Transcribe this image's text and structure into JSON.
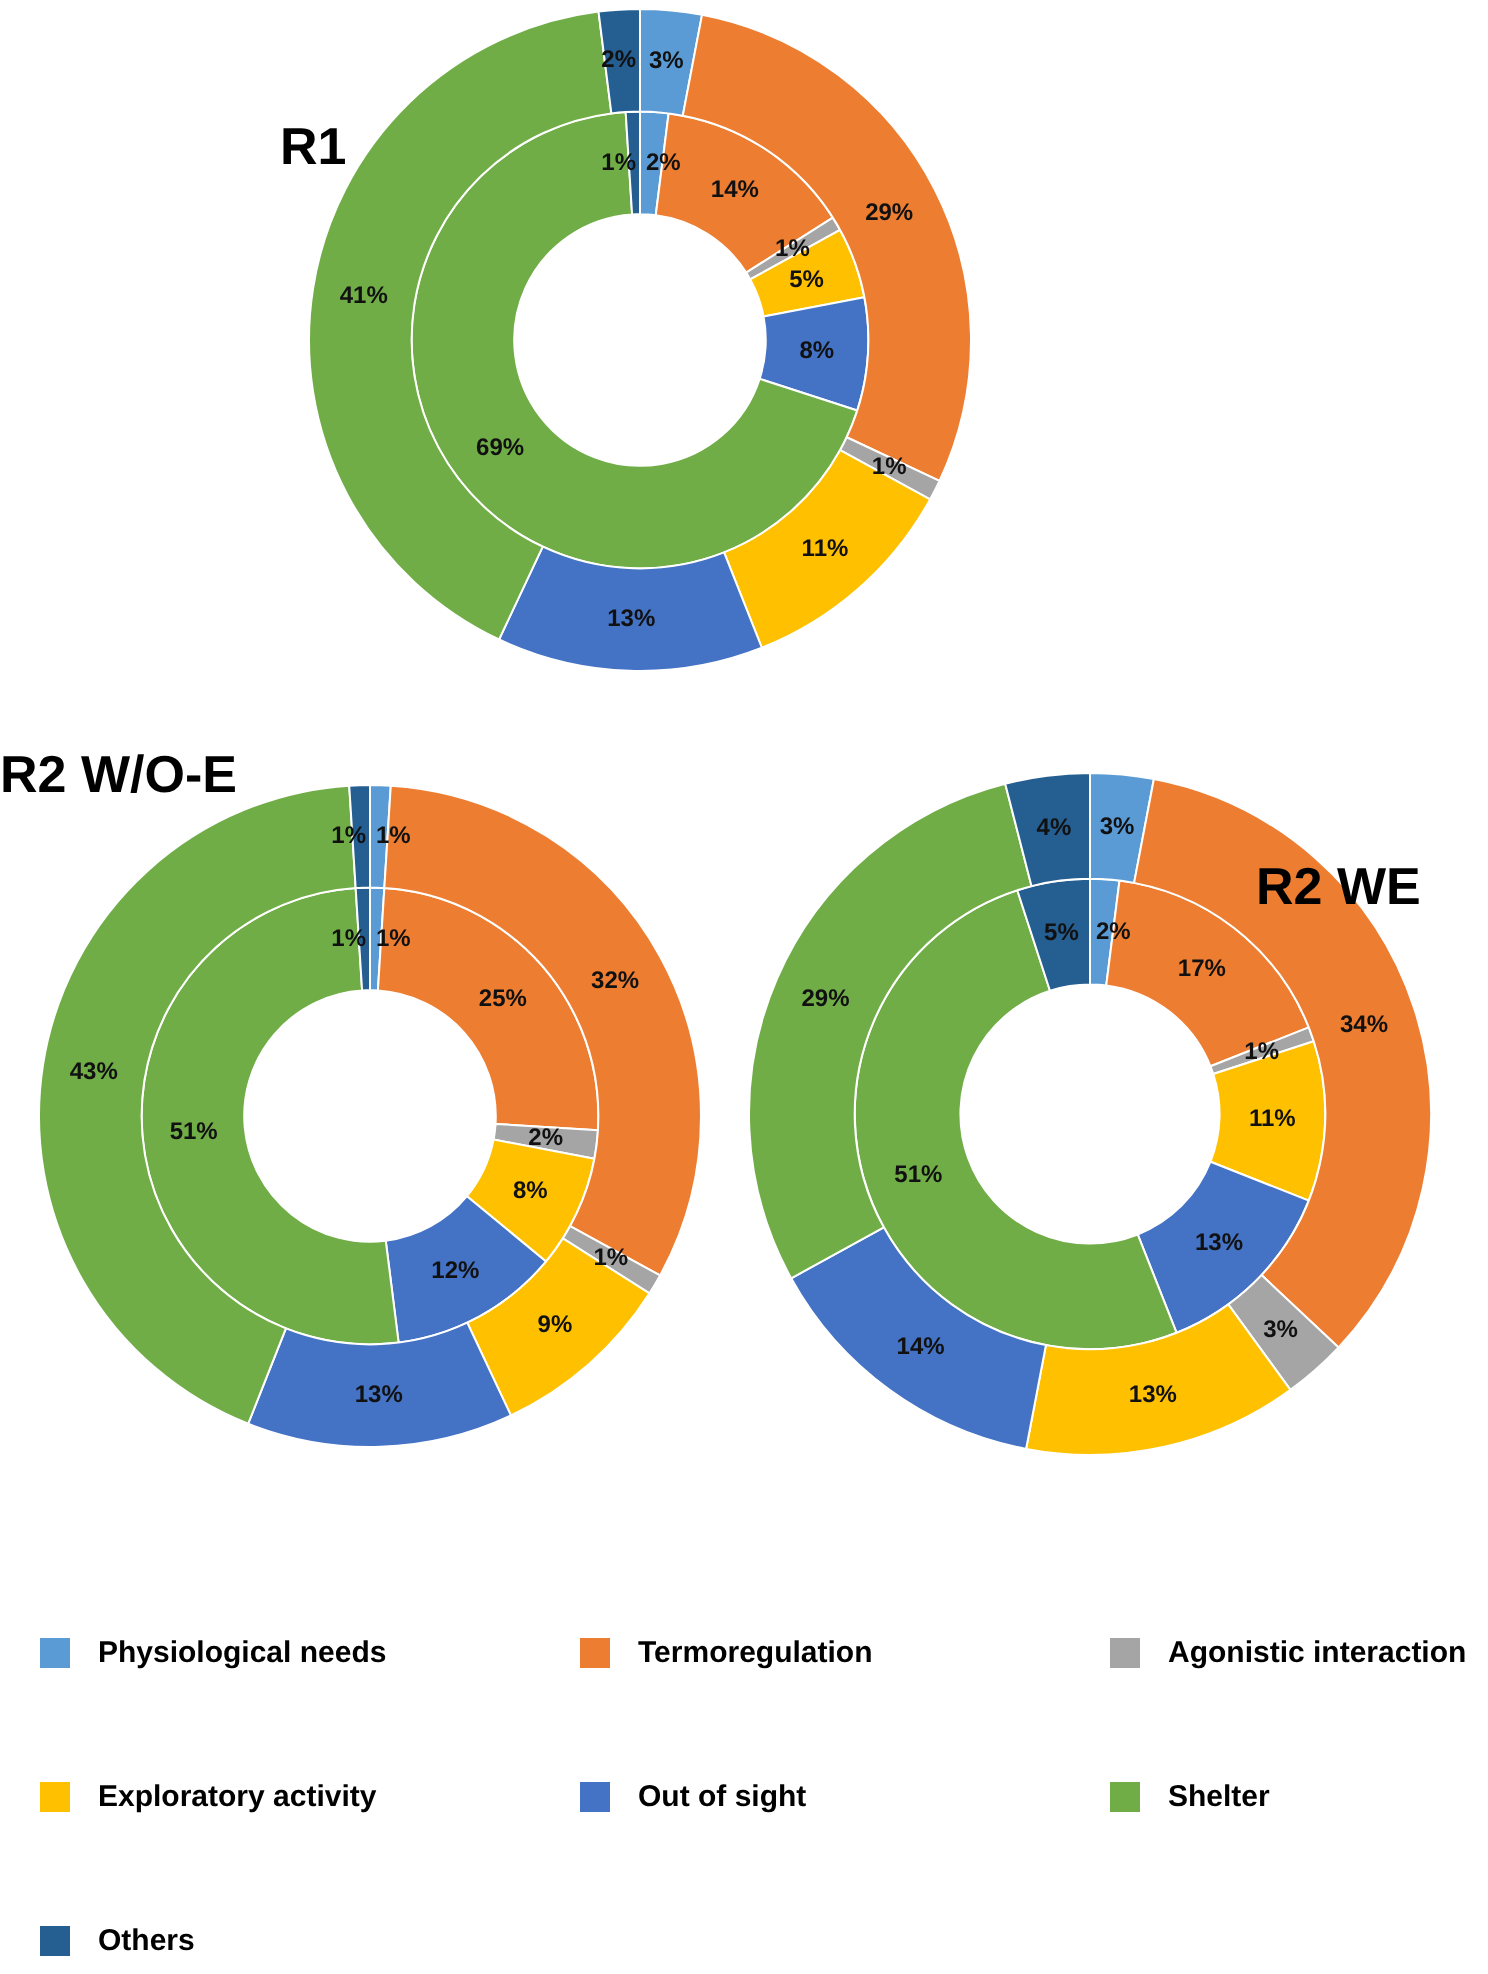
{
  "chart_data": [
    {
      "type": "donut",
      "title": "R1",
      "categories": [
        null,
        null,
        null,
        null,
        null,
        null,
        null
      ],
      "colors": [
        "#5b9bd5",
        "#ed7d31",
        "#a5a5a5",
        "#ffc000",
        "#4472c4",
        "#70ad47",
        "#255e91"
      ],
      "series": [
        {
          "values": [
            3,
            29,
            1,
            11,
            13,
            41,
            2
          ],
          "value_labels": [
            "3%",
            "29%",
            "1%",
            "11%",
            "13%",
            "41%",
            "2%"
          ]
        },
        {
          "values": [
            2,
            14,
            1,
            5,
            8,
            69,
            1
          ],
          "value_labels": [
            "2%",
            "14%",
            "1%",
            "5%",
            "8%",
            "69%",
            "1%"
          ]
        }
      ]
    },
    {
      "type": "donut",
      "title": "R2 W/O-E",
      "categories": [
        null,
        null,
        null,
        null,
        null,
        null,
        null
      ],
      "colors": [
        "#5b9bd5",
        "#ed7d31",
        "#a5a5a5",
        "#ffc000",
        "#4472c4",
        "#70ad47",
        "#255e91"
      ],
      "series": [
        {
          "values": [
            1,
            32,
            1,
            9,
            13,
            43,
            1
          ],
          "value_labels": [
            "1%",
            "32%",
            "1%",
            "9%",
            "13%",
            "43%",
            "1%"
          ]
        },
        {
          "values": [
            1,
            25,
            2,
            8,
            12,
            51,
            1
          ],
          "value_labels": [
            "1%",
            "25%",
            "2%",
            "8%",
            "12%",
            "51%",
            "1%"
          ]
        }
      ]
    },
    {
      "type": "donut",
      "title": "R2 WE",
      "legend": "bottom",
      "categories": [
        "Physiological needs",
        "Termoregulation",
        "Agonistic interaction",
        "Exploratory activity",
        "Out of sight",
        "Shelter",
        "Others"
      ],
      "colors": [
        "#5b9bd5",
        "#ed7d31",
        "#a5a5a5",
        "#ffc000",
        "#4472c4",
        "#70ad47",
        "#255e91"
      ],
      "series": [
        {
          "values": [
            3,
            34,
            3,
            13,
            14,
            29,
            4
          ],
          "value_labels": [
            "3%",
            "34%",
            "3%",
            "13%",
            "14%",
            "29%",
            "4%"
          ]
        },
        {
          "values": [
            2,
            17,
            1,
            11,
            13,
            51,
            5
          ],
          "value_labels": [
            "2%",
            "17%",
            "1%",
            "11%",
            "13%",
            "51%",
            "5%"
          ]
        }
      ]
    }
  ]
}
